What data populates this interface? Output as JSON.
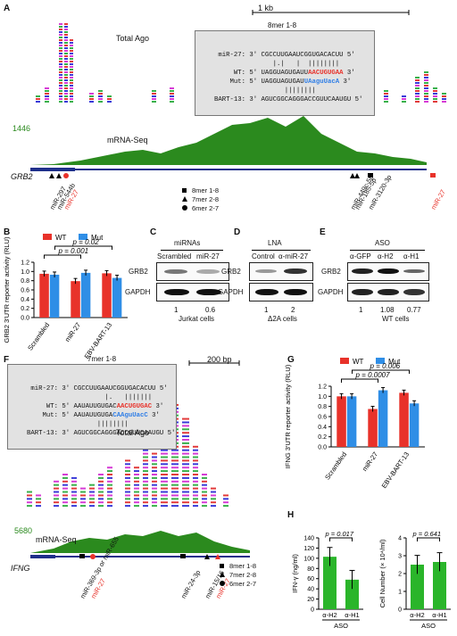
{
  "figure": {
    "panels": [
      "A",
      "B",
      "C",
      "D",
      "E",
      "F",
      "G",
      "H"
    ]
  },
  "panel_a": {
    "scale_bar": "1 kb",
    "track_total_ago": "Total Ago",
    "track_mrna": "mRNA-Seq",
    "mrna_max": "1446",
    "gene": "GRB2",
    "seq_title": "8mer 1-8",
    "seq_lines": [
      {
        "label": "miR-27:",
        "seq": "3′ CGCCUUGAAUCGGUGACACUU 5′"
      },
      {
        "label": "",
        "seq": "      |.|   |  ||||||||"
      },
      {
        "label": "WT:",
        "seq": "5′ UAGGUAGUGAUUAACUGUGAA 3′"
      },
      {
        "label": "Mut:",
        "seq": "5′ UAGGUAGUGAUUAaguUacA 3′"
      },
      {
        "label": "",
        "seq": "         ||||||||  "
      },
      {
        "label": "BART-13:",
        "seq": "3′ AGUCGGCAGGGACCGUUCAAUGU 5′"
      }
    ],
    "sites": [
      "miR-297",
      "miR-544b",
      "miR-27",
      "miR-449c-5p",
      "miR-185-5p",
      "miR-3120-3p",
      "miR-27"
    ],
    "legend": [
      "8mer 1-8",
      "7mer 2-8",
      "6mer 2-7"
    ]
  },
  "panel_b": {
    "legend": [
      "WT",
      "Mut"
    ],
    "colors": {
      "wt": "#e8322a",
      "mut": "#2f8ee6"
    },
    "ylabel": "GRB2 3′UTR reporter activity (RLU)",
    "pvals": [
      "p = 0.001",
      "p = 0.02"
    ]
  },
  "panel_c": {
    "header": "miRNAs",
    "cols": [
      "Scrambled",
      "miR-27"
    ],
    "rows": [
      "GRB2",
      "GAPDH"
    ],
    "quant": [
      "1",
      "0.6"
    ],
    "cells": "Jurkat cells"
  },
  "panel_d": {
    "header": "LNA",
    "cols": [
      "Control",
      "α-miR-27"
    ],
    "rows": [
      "GRB2",
      "GAPDH"
    ],
    "quant": [
      "1",
      "2"
    ],
    "cells": "Δ2A cells"
  },
  "panel_e": {
    "header": "ASO",
    "cols": [
      "α-GFP",
      "α-H2",
      "α-H1"
    ],
    "rows": [
      "GRB2",
      "GAPDH"
    ],
    "quant": [
      "1",
      "1.08",
      "0.77"
    ],
    "cells": "WT cells"
  },
  "panel_f": {
    "scale_bar": "200 bp",
    "seq_title": "7mer 1-8",
    "seq_lines": [
      {
        "label": "miR-27:",
        "seq": "3′ CGCCUUGAAUCGGUGACACUU 5′"
      },
      {
        "label": "",
        "seq": "           |.   ||||||| "
      },
      {
        "label": "WT:",
        "seq": "5′ AAUAUUGUGACAACUGUGAC 3′"
      },
      {
        "label": "Mut:",
        "seq": "5′ AAUAUUGUGACAAguUacC 3′"
      },
      {
        "label": "",
        "seq": "         ||||||||  "
      },
      {
        "label": "BART-13:",
        "seq": "3′ AGUCGGCAGGGACCGUUCAAUGU 5′"
      }
    ],
    "track_total_ago": "Total Ago",
    "track_mrna": "mRNA-Seq",
    "mrna_max": "5680",
    "gene": "IFNG",
    "sites": [
      "miR-369-3p or miR-655",
      "miR-27",
      "miR-24-3p",
      "miR-15/16",
      "miR-27"
    ],
    "legend": [
      "8mer 1-8",
      "7mer 2-8",
      "6mer 2-7"
    ]
  },
  "panel_g": {
    "legend": [
      "WT",
      "Mut"
    ],
    "ylabel": "IFNG 3′UTR reporter activity (RLU)",
    "pvals": [
      "p = 0.0007",
      "p = 0.006"
    ]
  },
  "panel_h": {
    "ylabel_left": "IFN-γ (ng/ml)",
    "ylabel_right": "Cell Number (× 10⁴/ml)",
    "pval_left": "p = 0.017",
    "pval_right": "p = 0.641",
    "group_label": "ASO"
  },
  "chart_data": [
    {
      "id": "B",
      "type": "bar",
      "categories": [
        "Scrambled",
        "miR-27",
        "EBV-BART-13"
      ],
      "series": [
        {
          "name": "WT",
          "values": [
            0.95,
            0.79,
            0.96
          ]
        },
        {
          "name": "Mut",
          "values": [
            0.93,
            0.97,
            0.86
          ]
        }
      ],
      "ylim": [
        0,
        1.2
      ],
      "yticks": [
        0,
        0.2,
        0.4,
        0.6,
        0.8,
        1.0,
        1.2
      ]
    },
    {
      "id": "G",
      "type": "bar",
      "categories": [
        "Scrambled",
        "miR-27",
        "EBV-BART-13"
      ],
      "series": [
        {
          "name": "WT",
          "values": [
            1.0,
            0.75,
            1.07
          ]
        },
        {
          "name": "Mut",
          "values": [
            1.0,
            1.12,
            0.86
          ]
        }
      ],
      "ylim": [
        0,
        1.2
      ],
      "yticks": [
        0,
        0.2,
        0.4,
        0.6,
        0.8,
        1.0,
        1.2
      ]
    },
    {
      "id": "H-left",
      "type": "bar",
      "categories": [
        "α-H2",
        "α-H1"
      ],
      "values": [
        103,
        58
      ],
      "ylim": [
        0,
        140
      ],
      "yticks": [
        0,
        20,
        40,
        60,
        80,
        100,
        120,
        140
      ]
    },
    {
      "id": "H-right",
      "type": "bar",
      "categories": [
        "α-H2",
        "α-H1"
      ],
      "values": [
        2.5,
        2.65
      ],
      "ylim": [
        0,
        4
      ],
      "yticks": [
        0,
        1,
        2,
        3,
        4
      ]
    }
  ]
}
